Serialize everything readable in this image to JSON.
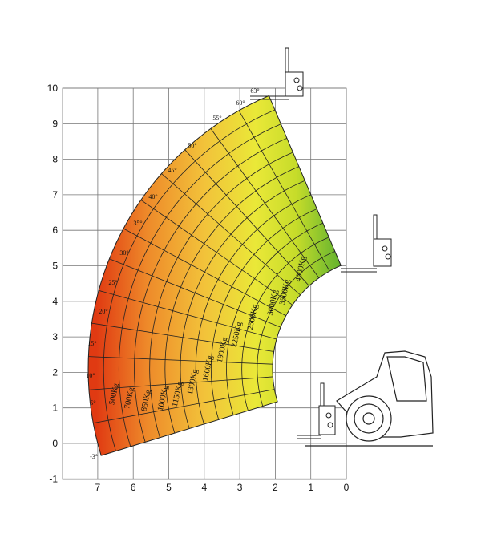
{
  "axes": {
    "x_ticks": [
      "7",
      "6",
      "5",
      "4",
      "3",
      "2",
      "1",
      "0"
    ],
    "y_ticks": [
      "10",
      "9",
      "8",
      "7",
      "6",
      "5",
      "4",
      "3",
      "2",
      "1",
      "0",
      "-1"
    ]
  },
  "angles": [
    "-3°",
    "5°",
    "10°",
    "15°",
    "20°",
    "25°",
    "30°",
    "35°",
    "40°",
    "45°",
    "50°",
    "55°",
    "60°",
    "63°"
  ],
  "loads": [
    "500Kg",
    "700Kg",
    "850Kg",
    "1000Kg",
    "1150Kg",
    "1300Kg",
    "1600Kg",
    "1900Kg",
    "2250Kg",
    "2500Kg",
    "3000Kg",
    "3500Kg",
    "4000Kg"
  ]
}
